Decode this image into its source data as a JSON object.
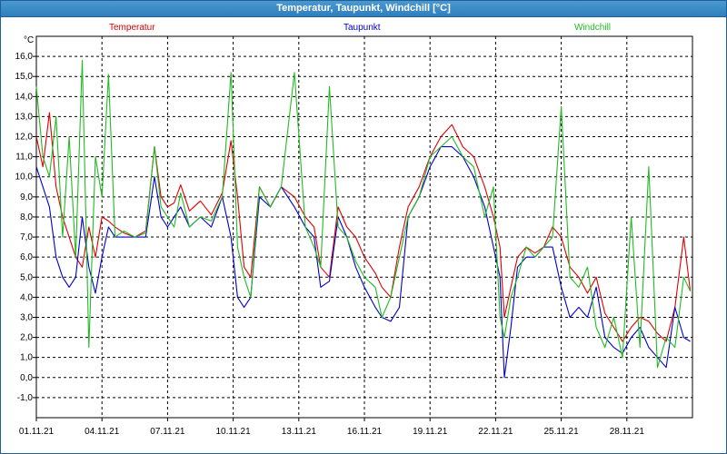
{
  "window": {
    "title": "Temperatur, Taupunkt, Windchill [°C]"
  },
  "colors": {
    "temperature": "#dd0000",
    "dewpoint": "#0000cc",
    "windchill": "#22bb22",
    "grid": "#000000"
  },
  "chart_data": {
    "type": "line",
    "title": "Temperatur, Taupunkt, Windchill [°C]",
    "xlabel": "",
    "ylabel": "°C",
    "xlim": [
      "01.11.21",
      "01.12.21"
    ],
    "ylim": [
      -2,
      17
    ],
    "grid": true,
    "legend_position": "top",
    "x_ticks": [
      "01.11.21",
      "04.11.21",
      "07.11.21",
      "10.11.21",
      "13.11.21",
      "16.11.21",
      "19.11.21",
      "22.11.21",
      "25.11.21",
      "28.11.21"
    ],
    "y_ticks": [
      "-1,0",
      "0,0",
      "1,0",
      "2,0",
      "3,0",
      "4,0",
      "5,0",
      "6,0",
      "7,0",
      "8,0",
      "9,0",
      "10,0",
      "11,0",
      "12,0",
      "13,0",
      "14,0",
      "15,0",
      "16,0"
    ],
    "x_tick_days": [
      0,
      3,
      6,
      9,
      12,
      15,
      18,
      21,
      24,
      27
    ],
    "y_tick_values": [
      -1,
      0,
      1,
      2,
      3,
      4,
      5,
      6,
      7,
      8,
      9,
      10,
      11,
      12,
      13,
      14,
      15,
      16
    ],
    "series": [
      {
        "name": "Temperatur",
        "color": "#dd0000",
        "x": [
          0,
          0.3,
          0.6,
          0.9,
          1.2,
          1.5,
          1.8,
          2.1,
          2.4,
          2.7,
          3.0,
          3.3,
          3.6,
          4.0,
          4.5,
          5.0,
          5.4,
          5.7,
          6.0,
          6.3,
          6.6,
          7.0,
          7.5,
          8.0,
          8.5,
          8.9,
          9.2,
          9.5,
          9.8,
          10.2,
          10.7,
          11.2,
          11.8,
          12.3,
          12.7,
          13.0,
          13.4,
          13.8,
          14.2,
          14.6,
          15.0,
          15.5,
          15.8,
          16.2,
          16.6,
          17.0,
          17.5,
          18.0,
          18.5,
          19.0,
          19.5,
          20.0,
          20.5,
          20.9,
          21.2,
          21.4,
          21.7,
          22.0,
          22.4,
          22.8,
          23.2,
          23.6,
          24.0,
          24.4,
          24.8,
          25.2,
          25.6,
          26.0,
          26.4,
          26.8,
          27.2,
          27.6,
          28.0,
          28.4,
          28.8,
          29.2,
          29.6,
          29.9
        ],
        "y": [
          12,
          10.5,
          13.2,
          9.5,
          8.0,
          7.0,
          6.0,
          5.5,
          7.5,
          6.0,
          8.0,
          7.8,
          7.5,
          7.2,
          7.0,
          7.3,
          11.5,
          9.0,
          8.5,
          8.7,
          9.6,
          8.3,
          8.8,
          8.1,
          9.2,
          11.8,
          9.0,
          5.5,
          5.0,
          9.5,
          8.5,
          9.5,
          9.0,
          8.0,
          7.5,
          5.5,
          5.0,
          8.5,
          7.5,
          7.0,
          6.0,
          5.2,
          4.5,
          4.0,
          6.5,
          8.5,
          9.5,
          11.0,
          12.0,
          12.6,
          11.5,
          11.0,
          9.5,
          8.0,
          6.5,
          3.0,
          4.5,
          6.0,
          6.5,
          6.2,
          6.5,
          7.5,
          7.0,
          5.5,
          5.0,
          4.2,
          5.0,
          3.2,
          2.5,
          1.8,
          2.5,
          3.0,
          2.8,
          2.2,
          1.8,
          3.5,
          7.0,
          4.3
        ]
      },
      {
        "name": "Taupunkt",
        "color": "#0000cc",
        "x": [
          0,
          0.3,
          0.6,
          0.9,
          1.2,
          1.5,
          1.8,
          2.1,
          2.4,
          2.7,
          3.0,
          3.3,
          3.6,
          4.0,
          4.5,
          5.0,
          5.4,
          5.7,
          6.0,
          6.3,
          6.6,
          7.0,
          7.5,
          8.0,
          8.5,
          8.9,
          9.2,
          9.5,
          9.8,
          10.2,
          10.7,
          11.2,
          11.8,
          12.3,
          12.7,
          13.0,
          13.4,
          13.8,
          14.2,
          14.6,
          15.0,
          15.5,
          15.8,
          16.2,
          16.6,
          17.0,
          17.5,
          18.0,
          18.5,
          19.0,
          19.5,
          20.0,
          20.5,
          20.9,
          21.2,
          21.4,
          21.7,
          22.0,
          22.4,
          22.8,
          23.2,
          23.6,
          24.0,
          24.4,
          24.8,
          25.2,
          25.6,
          26.0,
          26.4,
          26.8,
          27.2,
          27.6,
          28.0,
          28.4,
          28.8,
          29.2,
          29.6,
          29.9
        ],
        "y": [
          10.5,
          9.5,
          8.5,
          6.0,
          5.0,
          4.5,
          5.0,
          8.0,
          5.5,
          4.2,
          6.0,
          7.5,
          7.0,
          7.0,
          7.0,
          7.0,
          10.0,
          8.0,
          7.5,
          8.0,
          8.5,
          7.5,
          8.0,
          7.5,
          9.0,
          7.0,
          4.0,
          3.5,
          4.0,
          9.0,
          8.5,
          9.5,
          8.5,
          7.5,
          7.0,
          4.5,
          4.8,
          8.0,
          7.0,
          5.5,
          4.5,
          3.5,
          3.0,
          2.8,
          3.5,
          8.0,
          9.0,
          10.5,
          11.5,
          11.5,
          11.0,
          10.0,
          8.5,
          6.5,
          5.0,
          0.0,
          2.5,
          5.5,
          6.0,
          6.0,
          6.5,
          6.5,
          4.5,
          3.0,
          3.5,
          3.0,
          4.5,
          2.0,
          1.5,
          1.2,
          2.0,
          2.5,
          1.5,
          1.0,
          0.5,
          3.5,
          2.0,
          1.8
        ]
      },
      {
        "name": "Windchill",
        "color": "#22bb22",
        "x": [
          0,
          0.3,
          0.6,
          0.9,
          1.2,
          1.5,
          1.8,
          2.1,
          2.4,
          2.7,
          3.0,
          3.3,
          3.6,
          4.0,
          4.5,
          5.0,
          5.4,
          5.7,
          6.0,
          6.3,
          6.6,
          7.0,
          7.5,
          8.0,
          8.5,
          8.9,
          9.2,
          9.5,
          9.8,
          10.2,
          10.7,
          11.2,
          11.8,
          12.3,
          12.7,
          13.0,
          13.4,
          13.8,
          14.2,
          14.6,
          15.0,
          15.5,
          15.8,
          16.2,
          16.6,
          17.0,
          17.5,
          18.0,
          18.5,
          19.0,
          19.5,
          20.0,
          20.5,
          20.9,
          21.2,
          21.4,
          21.7,
          22.0,
          22.4,
          22.8,
          23.2,
          23.6,
          24.0,
          24.4,
          24.8,
          25.2,
          25.6,
          26.0,
          26.4,
          26.8,
          27.2,
          27.6,
          28.0,
          28.4,
          28.8,
          29.2,
          29.6,
          29.9
        ],
        "y": [
          14.5,
          11.0,
          10.0,
          13.0,
          7.0,
          12.0,
          6.0,
          15.8,
          1.5,
          11.0,
          9.0,
          15.1,
          7.0,
          7.3,
          7.0,
          7.2,
          11.5,
          8.5,
          8.0,
          7.5,
          9.2,
          7.5,
          8.0,
          7.8,
          9.0,
          15.2,
          6.5,
          5.0,
          4.0,
          9.5,
          8.5,
          9.5,
          15.2,
          7.5,
          6.5,
          5.5,
          14.5,
          7.5,
          7.0,
          5.8,
          5.0,
          4.5,
          3.0,
          4.0,
          6.0,
          8.0,
          9.0,
          11.0,
          11.5,
          12.0,
          11.0,
          10.5,
          8.0,
          9.5,
          3.0,
          2.0,
          4.0,
          5.0,
          6.5,
          6.0,
          6.5,
          7.0,
          13.5,
          5.0,
          4.5,
          5.5,
          2.5,
          1.5,
          3.0,
          1.0,
          8.0,
          1.5,
          10.5,
          0.5,
          2.0,
          1.5,
          5.0,
          4.3
        ]
      }
    ]
  }
}
